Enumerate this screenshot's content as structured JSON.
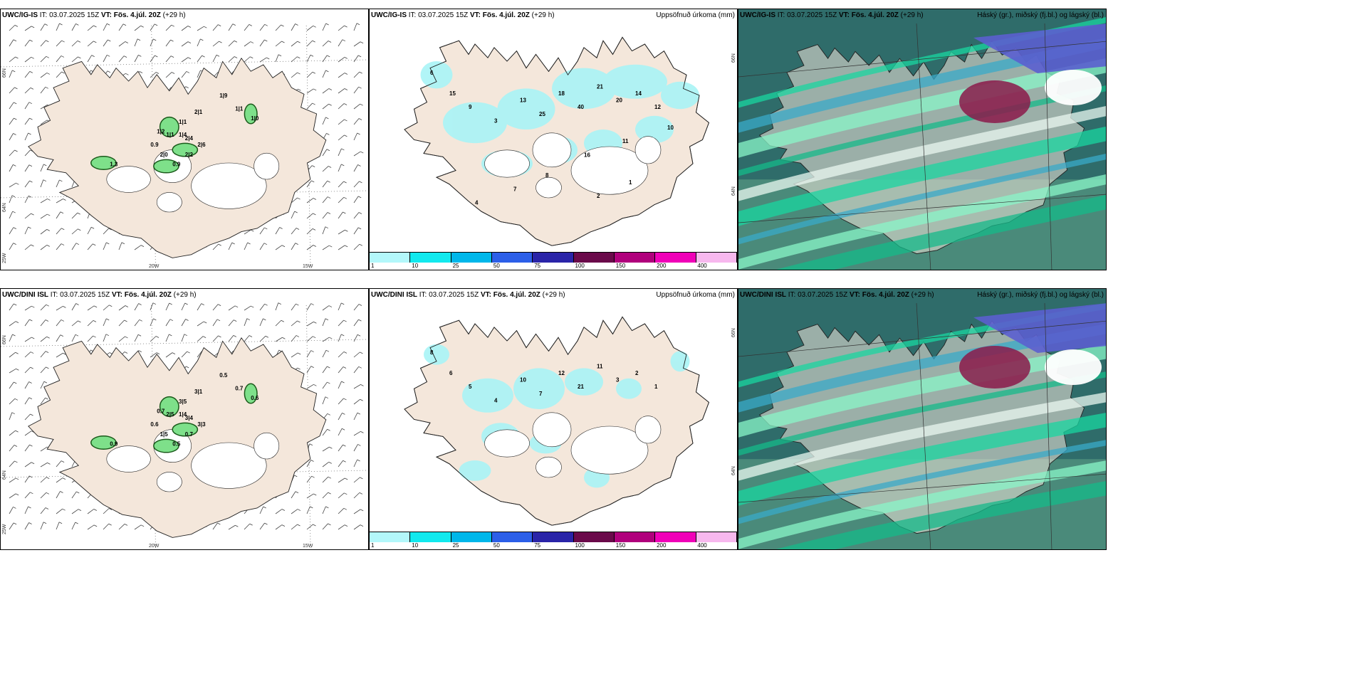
{
  "panels": [
    {
      "id": "top-left",
      "model": "UWC/IG-IS",
      "it": "IT: 03.07.2025 15Z",
      "vt_label": "VT:",
      "vt_value": "Fös. 4.júl. 20Z",
      "lead": "(+29 h)",
      "right_label": "",
      "axis": {
        "lat66": "66N",
        "lat64": "64N",
        "lon25": "25W",
        "lon20": "20W",
        "lon15": "15W"
      },
      "values": [
        "1|9",
        "1|1",
        "1|0",
        "2|1",
        "1|1",
        "1|4",
        "1|1",
        "1|2",
        "0.9",
        "2|0",
        "0.9",
        "2|2",
        "2|6",
        "1.3",
        "2|4"
      ]
    },
    {
      "id": "top-mid",
      "model": "UWC/IG-IS",
      "it": "IT: 03.07.2025 15Z",
      "vt_label": "VT:",
      "vt_value": "Fös. 4.júl. 20Z",
      "lead": "(+29 h)",
      "right_label": "Uppsöfnuð úrkoma (mm)",
      "axis": {
        "lat66": "66N",
        "lat64": "64N"
      },
      "values": [
        "6",
        "15",
        "9",
        "3",
        "13",
        "25",
        "18",
        "40",
        "21",
        "20",
        "14",
        "12",
        "10",
        "11",
        "16",
        "8",
        "7",
        "4",
        "2",
        "1"
      ],
      "colorbar": [
        "1",
        "10",
        "25",
        "50",
        "75",
        "100",
        "150",
        "200",
        "400"
      ]
    },
    {
      "id": "top-right",
      "model": "UWC/IG-IS",
      "it": "IT: 03.07.2025 15Z",
      "vt_label": "VT:",
      "vt_value": "Fös. 4.júl. 20Z",
      "lead": "(+29 h)",
      "right_label": "Háský (gr.), miðský (fj.bl.) og lágský (bl.)"
    },
    {
      "id": "bot-left",
      "model": "UWC/DINI ISL",
      "it": "IT: 03.07.2025 15Z",
      "vt_label": "VT:",
      "vt_value": "Fös. 4.júl. 20Z",
      "lead": "(+29 h)",
      "right_label": "",
      "axis": {
        "lat66": "66N",
        "lat64": "64N",
        "lon25": "25W",
        "lon20": "20W",
        "lon15": "15W"
      },
      "values": [
        "0.5",
        "0.7",
        "0.6",
        "3|1",
        "3|5",
        "1|4",
        "2|5",
        "0.7",
        "0.6",
        "1|5",
        "0.5",
        "0.7",
        "3|3",
        "0.9",
        "3|4"
      ]
    },
    {
      "id": "bot-mid",
      "model": "UWC/DINI ISL",
      "it": "IT: 03.07.2025 15Z",
      "vt_label": "VT:",
      "vt_value": "Fös. 4.júl. 20Z",
      "lead": "(+29 h)",
      "right_label": "Uppsöfnuð úrkoma (mm)",
      "axis": {
        "lat66": "66N",
        "lat64": "64N"
      },
      "values": [
        "8",
        "6",
        "5",
        "4",
        "10",
        "7",
        "12",
        "21",
        "11",
        "3",
        "2",
        "1"
      ],
      "colorbar": [
        "1",
        "10",
        "25",
        "50",
        "75",
        "100",
        "150",
        "200",
        "400"
      ]
    },
    {
      "id": "bot-right",
      "model": "UWC/DINI ISL",
      "it": "IT: 03.07.2025 15Z",
      "vt_label": "VT:",
      "vt_value": "Fös. 4.júl. 20Z",
      "lead": "(+29 h)",
      "right_label": "Háský (gr.), miðský (fj.bl.) og lágský (bl.)"
    }
  ],
  "colors": {
    "land": "#f4e7db",
    "precip": "#a9f4f6",
    "green": "#7ee08a",
    "darkgreen": "#1a5a1a",
    "cb": [
      "#b3f7fa",
      "#12e9ee",
      "#00b7ea",
      "#2c5fe8",
      "#2a24a8",
      "#6a0a4a",
      "#b0007c",
      "#f000b8",
      "#f7b8ee"
    ]
  }
}
